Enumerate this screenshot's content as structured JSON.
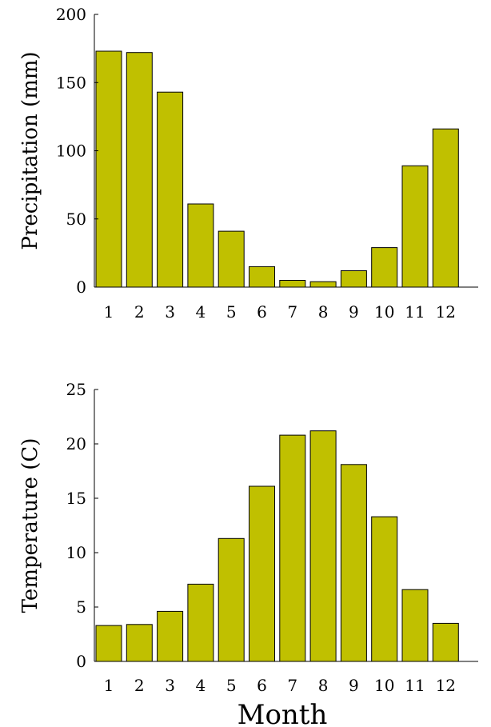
{
  "colors": {
    "bar": "#c0c000",
    "axis": "#000000"
  },
  "chart_data": [
    {
      "type": "bar",
      "categories": [
        "1",
        "2",
        "3",
        "4",
        "5",
        "6",
        "7",
        "8",
        "9",
        "10",
        "11",
        "12"
      ],
      "values": [
        173,
        172,
        143,
        61,
        41,
        15,
        5,
        4,
        12,
        29,
        89,
        116
      ],
      "title": "",
      "xlabel": "",
      "ylabel": "Precipitation (mm)",
      "ylim": [
        0,
        200
      ],
      "yticks": [
        0,
        50,
        100,
        150,
        200
      ],
      "grid": false
    },
    {
      "type": "bar",
      "categories": [
        "1",
        "2",
        "3",
        "4",
        "5",
        "6",
        "7",
        "8",
        "9",
        "10",
        "11",
        "12"
      ],
      "values": [
        3.3,
        3.4,
        4.6,
        7.1,
        11.3,
        16.1,
        20.8,
        21.2,
        18.1,
        13.3,
        6.6,
        3.5
      ],
      "title": "",
      "xlabel": "Month",
      "ylabel": "Temperature (C)",
      "ylim": [
        0,
        25
      ],
      "yticks": [
        0,
        5,
        10,
        15,
        20,
        25
      ],
      "grid": false
    }
  ]
}
